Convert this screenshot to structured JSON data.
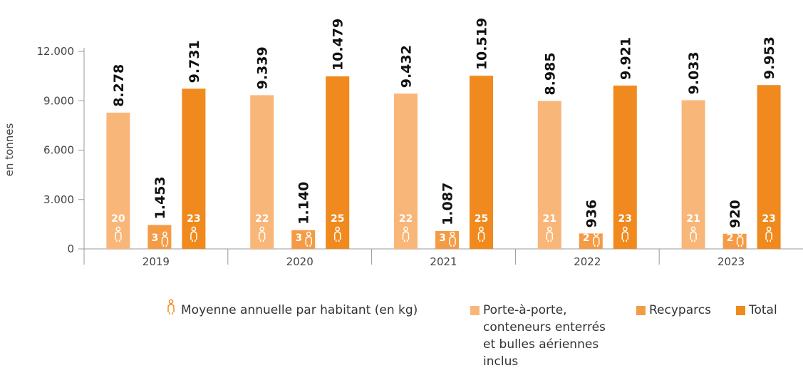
{
  "chart_data": {
    "type": "bar",
    "ylabel": "en tonnes",
    "per_capita_label": "Moyenne annuelle par habitant (en kg)",
    "categories": [
      "2019",
      "2020",
      "2021",
      "2022",
      "2023"
    ],
    "series": [
      {
        "name": "Porte-à-porte, conteneurs enterrés et bulles aériennes inclus",
        "color": "#f9b679",
        "values": [
          8278,
          9339,
          9432,
          8985,
          9033
        ],
        "value_labels": [
          "8.278",
          "9.339",
          "9.432",
          "8.985",
          "9.033"
        ],
        "per_capita": [
          20,
          22,
          22,
          21,
          21
        ]
      },
      {
        "name": "Recyparcs",
        "color": "#f49b45",
        "values": [
          1453,
          1140,
          1087,
          936,
          920
        ],
        "value_labels": [
          "1.453",
          "1.140",
          "1.087",
          "936",
          "920"
        ],
        "per_capita": [
          3,
          3,
          3,
          2,
          2
        ]
      },
      {
        "name": "Total",
        "color": "#f08a1e",
        "values": [
          9731,
          10479,
          10519,
          9921,
          9953
        ],
        "value_labels": [
          "9.731",
          "10.479",
          "10.519",
          "9.921",
          "9.953"
        ],
        "per_capita": [
          23,
          25,
          25,
          23,
          23
        ]
      }
    ],
    "ylim": [
      0,
      12000
    ],
    "yticks": [
      0,
      {
        "value": 3000,
        "label": "3.000"
      },
      {
        "value": 6000,
        "label": "6.000"
      },
      {
        "value": 9000,
        "label": "9.000"
      },
      {
        "value": 12000,
        "label": "12.000"
      }
    ]
  }
}
